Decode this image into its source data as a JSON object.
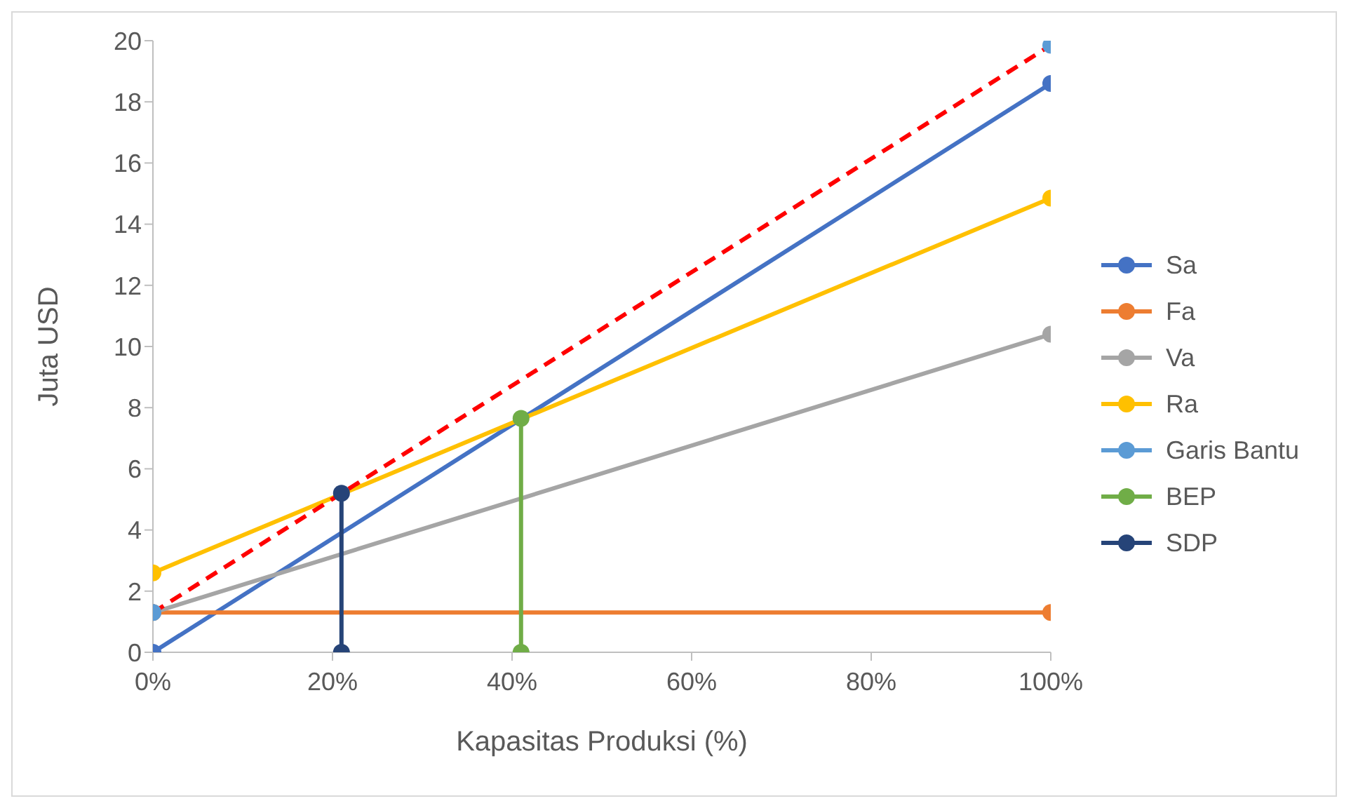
{
  "chart_data": {
    "type": "line",
    "xlabel": "Kapasitas Produksi (%)",
    "ylabel": "Juta USD",
    "xlim": [
      0,
      100
    ],
    "xticks": [
      {
        "value": 0,
        "label": "0%"
      },
      {
        "value": 20,
        "label": "20%"
      },
      {
        "value": 40,
        "label": "40%"
      },
      {
        "value": 60,
        "label": "60%"
      },
      {
        "value": 80,
        "label": "80%"
      },
      {
        "value": 100,
        "label": "100%"
      }
    ],
    "ylim": [
      0,
      20
    ],
    "yticks": [
      0,
      2,
      4,
      6,
      8,
      10,
      12,
      14,
      16,
      18,
      20
    ],
    "grid": false,
    "legend": "right",
    "marker": "circle",
    "series": [
      {
        "name": "Sa",
        "color": "#4472c4",
        "x": [
          0,
          100
        ],
        "values": [
          0,
          18.6
        ]
      },
      {
        "name": "Fa",
        "color": "#ed7d31",
        "x": [
          0,
          100
        ],
        "values": [
          1.3,
          1.3
        ]
      },
      {
        "name": "Va",
        "color": "#a5a5a5",
        "x": [
          0,
          100
        ],
        "values": [
          1.3,
          10.4
        ]
      },
      {
        "name": "Ra",
        "color": "#ffc000",
        "x": [
          0,
          100
        ],
        "values": [
          2.6,
          14.85
        ]
      },
      {
        "color": "#ff0000",
        "x": [
          0,
          100
        ],
        "values": [
          1.3,
          19.85
        ],
        "line_style": "dashed",
        "marker": "none"
      },
      {
        "name": "Garis Bantu",
        "type": "scatter",
        "color": "#5b9bd5",
        "x": [
          0,
          100
        ],
        "values": [
          1.3,
          19.85
        ]
      },
      {
        "name": "BEP",
        "color": "#70ad47",
        "x": [
          41,
          41
        ],
        "values": [
          0,
          7.65
        ]
      },
      {
        "name": "SDP",
        "color": "#264478",
        "x": [
          21,
          21
        ],
        "values": [
          0,
          5.2
        ]
      }
    ]
  }
}
